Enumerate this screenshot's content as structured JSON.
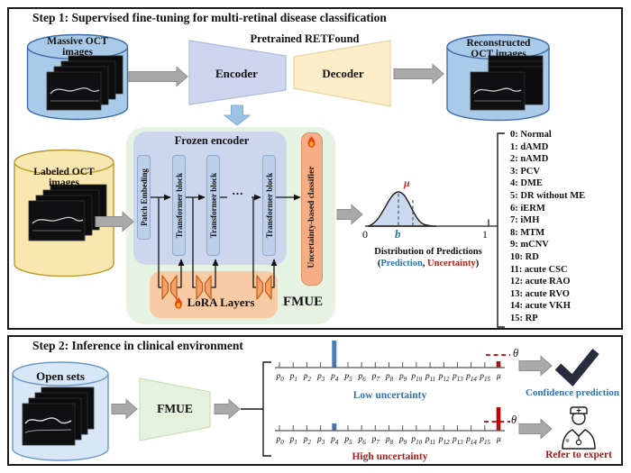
{
  "colors": {
    "box_border": "#1a1a1a",
    "cylinder_blue": "#a9cbe9",
    "cylinder_yellow": "#f8e7ae",
    "cylinder_light_blue": "#d7e7f7",
    "encoder_fill": "#cdd6ee",
    "decoder_fill": "#fdedc8",
    "fmue_container_fill": "#e7f3e2",
    "frozen_container_fill": "#ccd7ee",
    "block_fill": "#bcd0e9",
    "classifier_fill": "#f5ad85",
    "lora_fill": "#f9cba5",
    "accent_blue": "#2e74b5",
    "accent_red": "#b02418",
    "bar_blue": "#4a7ebb",
    "bar_red": "#c00000",
    "arrow_gray": "#a9a9a9"
  },
  "step1": {
    "title": "Step 1: Supervised fine-tuning for multi-retinal disease classification",
    "massive_cylinder_line1": "Massive OCT",
    "massive_cylinder_line2": "images",
    "pretrained_label": "Pretrained RETFound",
    "encoder_label": "Encoder",
    "decoder_label": "Decoder",
    "reconstructed_line1": "Reconstructed",
    "reconstructed_line2": "OCT images",
    "labeled_line1": "Labeled OCT",
    "labeled_line2": "images",
    "frozen_encoder_label": "Frozen encoder",
    "patch_embedding_label": "Patch Embeding",
    "transformer_block_label": "Transformer block",
    "ellipsis": "...",
    "classifier_label": "Uncertainty-based classifier",
    "lora_label": "LoRA Layers",
    "fmue_label": "FMUE",
    "distribution": {
      "tick0": "0",
      "tick1": "1",
      "b_label": "b",
      "mu_label": "μ",
      "caption": "Distribution of Predictions",
      "legend_open": "(",
      "legend_prediction": "Prediction",
      "legend_sep": ", ",
      "legend_uncertainty": "Uncertainty",
      "legend_close": ")"
    },
    "classes": [
      "0: Normal",
      "1: dAMD",
      "2: nAMD",
      "3: PCV",
      "4: DME",
      "5: DR without ME",
      "6: iERM",
      "7: iMH",
      "8: MTM",
      "9: mCNV",
      "10: RD",
      "11: acute CSC",
      "12: acute RAO",
      "13: acute RVO",
      "14: acute VKH",
      "15: RP"
    ]
  },
  "step2": {
    "title": "Step 2: Inference in clinical environment",
    "open_cylinder_label": "Open sets",
    "fmue_label": "FMUE",
    "axis_labels": [
      "p0",
      "p1",
      "p2",
      "p3",
      "p4",
      "p5",
      "p6",
      "p7",
      "p8",
      "p9",
      "p10",
      "p11",
      "p12",
      "p13",
      "p14",
      "p15",
      "μ"
    ],
    "theta_label": "θ",
    "low_chart": {
      "label": "Low uncertainty",
      "tall_blue_bar_at": "p4",
      "small_red_bar_at": "μ"
    },
    "high_chart": {
      "label": "High uncertainty",
      "small_blue_bar_at": "p4",
      "tall_red_bar_at": "μ"
    },
    "confidence_label": "Confidence prediction",
    "refer_label": "Refer to expert"
  }
}
